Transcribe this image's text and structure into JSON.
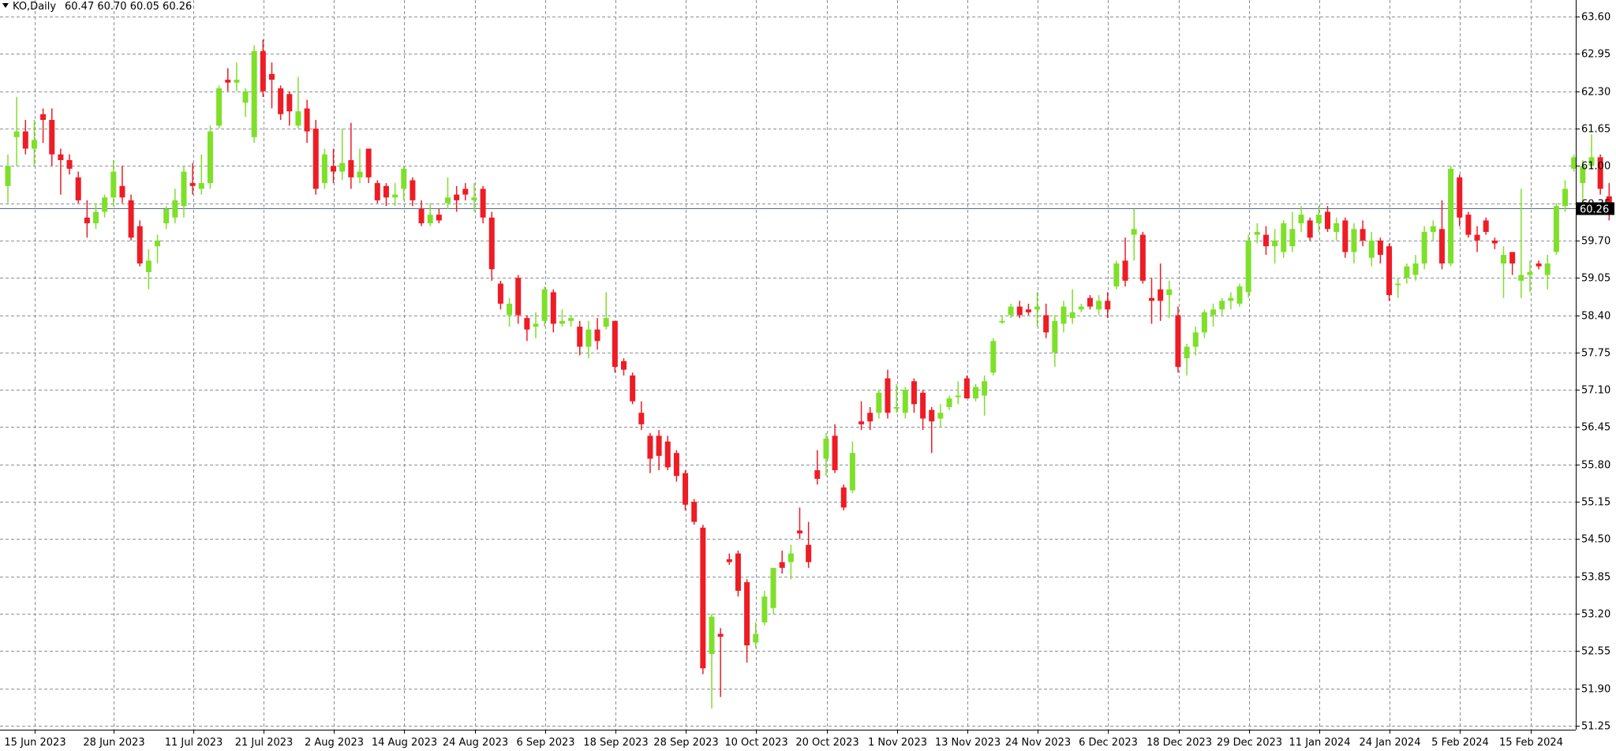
{
  "header": {
    "symbol_label": "KO,Daily",
    "ohlc_text": "60.47 60.70 60.05 60.26"
  },
  "price_marker": {
    "value": 60.26,
    "label": "60.26"
  },
  "colors": {
    "bull": "#7ee02a",
    "bear": "#ee1c25",
    "grid": "#8a9099",
    "price_line": "#5a6a80",
    "price_marker_bg": "#000000",
    "price_marker_fg": "#ffffff"
  },
  "chart_data": {
    "type": "candlestick",
    "title": "",
    "xlabel": "",
    "ylabel": "",
    "grid": true,
    "ylim": [
      51.25,
      63.6
    ],
    "y_ticks": [
      "63.60",
      "62.95",
      "62.30",
      "61.65",
      "61.00",
      "60.35",
      "59.70",
      "59.05",
      "58.40",
      "57.75",
      "57.10",
      "56.45",
      "55.80",
      "55.15",
      "54.50",
      "53.85",
      "53.20",
      "52.55",
      "51.90",
      "51.25"
    ],
    "x_ticks": [
      {
        "label": "15 Jun 2023",
        "index": 0
      },
      {
        "label": "28 Jun 2023",
        "index": 9
      },
      {
        "label": "11 Jul 2023",
        "index": 18
      },
      {
        "label": "21 Jul 2023",
        "index": 26
      },
      {
        "label": "2 Aug 2023",
        "index": 34
      },
      {
        "label": "14 Aug 2023",
        "index": 42
      },
      {
        "label": "24 Aug 2023",
        "index": 50
      },
      {
        "label": "6 Sep 2023",
        "index": 58
      },
      {
        "label": "18 Sep 2023",
        "index": 66
      },
      {
        "label": "28 Sep 2023",
        "index": 74
      },
      {
        "label": "10 Oct 2023",
        "index": 82
      },
      {
        "label": "20 Oct 2023",
        "index": 90
      },
      {
        "label": "1 Nov 2023",
        "index": 98
      },
      {
        "label": "13 Nov 2023",
        "index": 106
      },
      {
        "label": "24 Nov 2023",
        "index": 114
      },
      {
        "label": "6 Dec 2023",
        "index": 122
      },
      {
        "label": "18 Dec 2023",
        "index": 130
      },
      {
        "label": "29 Dec 2023",
        "index": 138
      },
      {
        "label": "11 Jan 2024",
        "index": 146
      },
      {
        "label": "24 Jan 2024",
        "index": 154
      },
      {
        "label": "5 Feb 2024",
        "index": 162
      },
      {
        "label": "15 Feb 2024",
        "index": 170
      }
    ],
    "candles": [
      {
        "o": 60.65,
        "h": 61.2,
        "l": 60.35,
        "c": 61.0
      },
      {
        "o": 61.5,
        "h": 62.2,
        "l": 61.0,
        "c": 61.6
      },
      {
        "o": 61.6,
        "h": 61.8,
        "l": 61.2,
        "c": 61.3
      },
      {
        "o": 61.3,
        "h": 61.8,
        "l": 61.0,
        "c": 61.45
      },
      {
        "o": 61.9,
        "h": 62.0,
        "l": 61.4,
        "c": 61.8
      },
      {
        "o": 61.8,
        "h": 62.0,
        "l": 61.0,
        "c": 61.2
      },
      {
        "o": 61.2,
        "h": 61.3,
        "l": 60.5,
        "c": 61.1
      },
      {
        "o": 61.1,
        "h": 61.2,
        "l": 60.85,
        "c": 60.95
      },
      {
        "o": 60.8,
        "h": 60.9,
        "l": 60.35,
        "c": 60.4
      },
      {
        "o": 60.1,
        "h": 60.4,
        "l": 59.75,
        "c": 60.0
      },
      {
        "o": 60.0,
        "h": 60.35,
        "l": 59.9,
        "c": 60.2
      },
      {
        "o": 60.2,
        "h": 60.5,
        "l": 60.1,
        "c": 60.45
      },
      {
        "o": 60.45,
        "h": 61.1,
        "l": 60.3,
        "c": 60.9
      },
      {
        "o": 60.65,
        "h": 61.0,
        "l": 60.35,
        "c": 60.45
      },
      {
        "o": 60.4,
        "h": 60.5,
        "l": 59.7,
        "c": 59.75
      },
      {
        "o": 59.95,
        "h": 60.05,
        "l": 59.25,
        "c": 59.3
      },
      {
        "o": 59.15,
        "h": 59.55,
        "l": 58.85,
        "c": 59.35
      },
      {
        "o": 59.6,
        "h": 59.8,
        "l": 59.3,
        "c": 59.7
      },
      {
        "o": 60.0,
        "h": 60.3,
        "l": 59.9,
        "c": 60.25
      },
      {
        "o": 60.1,
        "h": 60.6,
        "l": 60.0,
        "c": 60.4
      },
      {
        "o": 60.3,
        "h": 61.0,
        "l": 60.1,
        "c": 60.9
      },
      {
        "o": 60.7,
        "h": 61.05,
        "l": 60.5,
        "c": 60.65
      },
      {
        "o": 60.6,
        "h": 61.2,
        "l": 60.5,
        "c": 60.7
      },
      {
        "o": 60.7,
        "h": 61.7,
        "l": 60.6,
        "c": 61.6
      },
      {
        "o": 61.7,
        "h": 62.4,
        "l": 61.65,
        "c": 62.35
      },
      {
        "o": 62.5,
        "h": 62.7,
        "l": 62.3,
        "c": 62.45
      },
      {
        "o": 62.45,
        "h": 62.8,
        "l": 62.3,
        "c": 62.5
      },
      {
        "o": 62.1,
        "h": 62.35,
        "l": 61.85,
        "c": 62.3
      },
      {
        "o": 61.5,
        "h": 63.1,
        "l": 61.4,
        "c": 63.0
      },
      {
        "o": 63.0,
        "h": 63.2,
        "l": 62.2,
        "c": 62.3
      },
      {
        "o": 62.6,
        "h": 62.8,
        "l": 62.0,
        "c": 62.5
      },
      {
        "o": 62.35,
        "h": 62.4,
        "l": 61.8,
        "c": 61.9
      },
      {
        "o": 62.25,
        "h": 62.3,
        "l": 61.7,
        "c": 61.95
      },
      {
        "o": 61.7,
        "h": 62.55,
        "l": 61.65,
        "c": 61.95
      },
      {
        "o": 62.0,
        "h": 62.15,
        "l": 61.4,
        "c": 61.6
      },
      {
        "o": 61.65,
        "h": 61.8,
        "l": 60.5,
        "c": 60.6
      },
      {
        "o": 60.7,
        "h": 61.3,
        "l": 60.6,
        "c": 61.2
      },
      {
        "o": 61.0,
        "h": 61.3,
        "l": 60.7,
        "c": 60.9
      },
      {
        "o": 60.9,
        "h": 61.65,
        "l": 60.75,
        "c": 61.05
      },
      {
        "o": 61.1,
        "h": 61.75,
        "l": 60.6,
        "c": 60.8
      },
      {
        "o": 60.8,
        "h": 61.3,
        "l": 60.7,
        "c": 60.9
      },
      {
        "o": 61.3,
        "h": 61.3,
        "l": 60.7,
        "c": 60.8
      },
      {
        "o": 60.7,
        "h": 60.75,
        "l": 60.35,
        "c": 60.4
      },
      {
        "o": 60.65,
        "h": 60.7,
        "l": 60.3,
        "c": 60.45
      },
      {
        "o": 60.45,
        "h": 60.7,
        "l": 60.3,
        "c": 60.5
      },
      {
        "o": 60.6,
        "h": 61.0,
        "l": 60.4,
        "c": 60.95
      },
      {
        "o": 60.75,
        "h": 60.8,
        "l": 60.3,
        "c": 60.4
      },
      {
        "o": 60.25,
        "h": 60.4,
        "l": 59.95,
        "c": 60.0
      },
      {
        "o": 60.0,
        "h": 60.35,
        "l": 59.95,
        "c": 60.15
      },
      {
        "o": 60.15,
        "h": 60.25,
        "l": 60.0,
        "c": 60.05
      },
      {
        "o": 60.35,
        "h": 60.8,
        "l": 60.25,
        "c": 60.45
      },
      {
        "o": 60.5,
        "h": 60.65,
        "l": 60.2,
        "c": 60.4
      },
      {
        "o": 60.6,
        "h": 60.7,
        "l": 60.4,
        "c": 60.5
      },
      {
        "o": 60.4,
        "h": 60.7,
        "l": 60.2,
        "c": 60.45
      },
      {
        "o": 60.6,
        "h": 60.65,
        "l": 60.0,
        "c": 60.1
      },
      {
        "o": 60.1,
        "h": 60.2,
        "l": 59.0,
        "c": 59.2
      },
      {
        "o": 58.95,
        "h": 59.0,
        "l": 58.5,
        "c": 58.6
      },
      {
        "o": 58.4,
        "h": 58.7,
        "l": 58.2,
        "c": 58.6
      },
      {
        "o": 59.05,
        "h": 59.1,
        "l": 58.25,
        "c": 58.4
      },
      {
        "o": 58.35,
        "h": 58.4,
        "l": 57.95,
        "c": 58.15
      },
      {
        "o": 58.2,
        "h": 58.45,
        "l": 58.0,
        "c": 58.25
      },
      {
        "o": 58.3,
        "h": 58.9,
        "l": 58.2,
        "c": 58.85
      },
      {
        "o": 58.8,
        "h": 58.85,
        "l": 58.1,
        "c": 58.25
      },
      {
        "o": 58.25,
        "h": 58.5,
        "l": 58.2,
        "c": 58.3
      },
      {
        "o": 58.3,
        "h": 58.4,
        "l": 58.2,
        "c": 58.35
      },
      {
        "o": 58.2,
        "h": 58.3,
        "l": 57.7,
        "c": 57.85
      },
      {
        "o": 57.85,
        "h": 58.3,
        "l": 57.65,
        "c": 58.15
      },
      {
        "o": 58.15,
        "h": 58.35,
        "l": 57.8,
        "c": 57.95
      },
      {
        "o": 58.2,
        "h": 58.8,
        "l": 58.15,
        "c": 58.35
      },
      {
        "o": 58.3,
        "h": 58.3,
        "l": 57.4,
        "c": 57.5
      },
      {
        "o": 57.6,
        "h": 57.65,
        "l": 57.35,
        "c": 57.45
      },
      {
        "o": 57.35,
        "h": 57.4,
        "l": 56.85,
        "c": 56.9
      },
      {
        "o": 56.7,
        "h": 56.9,
        "l": 56.4,
        "c": 56.5
      },
      {
        "o": 56.3,
        "h": 56.35,
        "l": 55.65,
        "c": 55.9
      },
      {
        "o": 56.3,
        "h": 56.4,
        "l": 55.7,
        "c": 55.95
      },
      {
        "o": 56.2,
        "h": 56.3,
        "l": 55.7,
        "c": 55.75
      },
      {
        "o": 56.0,
        "h": 56.05,
        "l": 55.5,
        "c": 55.6
      },
      {
        "o": 55.65,
        "h": 55.7,
        "l": 55.0,
        "c": 55.1
      },
      {
        "o": 55.15,
        "h": 55.2,
        "l": 54.75,
        "c": 54.8
      },
      {
        "o": 54.7,
        "h": 54.75,
        "l": 52.15,
        "c": 52.25
      },
      {
        "o": 52.5,
        "h": 53.2,
        "l": 51.55,
        "c": 53.15
      },
      {
        "o": 52.85,
        "h": 52.95,
        "l": 51.75,
        "c": 52.8
      },
      {
        "o": 54.15,
        "h": 54.25,
        "l": 54.05,
        "c": 54.1
      },
      {
        "o": 54.25,
        "h": 54.3,
        "l": 53.5,
        "c": 53.6
      },
      {
        "o": 53.75,
        "h": 53.8,
        "l": 52.35,
        "c": 52.65
      },
      {
        "o": 52.7,
        "h": 53.05,
        "l": 52.6,
        "c": 52.85
      },
      {
        "o": 53.05,
        "h": 53.6,
        "l": 53.0,
        "c": 53.5
      },
      {
        "o": 53.3,
        "h": 54.0,
        "l": 53.2,
        "c": 54.0
      },
      {
        "o": 54.1,
        "h": 54.3,
        "l": 53.9,
        "c": 54.0
      },
      {
        "o": 54.1,
        "h": 54.4,
        "l": 53.8,
        "c": 54.25
      },
      {
        "o": 54.65,
        "h": 55.05,
        "l": 54.5,
        "c": 54.6
      },
      {
        "o": 54.4,
        "h": 54.8,
        "l": 54.0,
        "c": 54.1
      },
      {
        "o": 55.7,
        "h": 56.05,
        "l": 55.45,
        "c": 55.55
      },
      {
        "o": 55.9,
        "h": 56.35,
        "l": 55.6,
        "c": 56.25
      },
      {
        "o": 56.3,
        "h": 56.5,
        "l": 55.65,
        "c": 55.7
      },
      {
        "o": 55.4,
        "h": 55.45,
        "l": 55.0,
        "c": 55.05
      },
      {
        "o": 55.35,
        "h": 56.2,
        "l": 55.3,
        "c": 56.0
      },
      {
        "o": 56.55,
        "h": 56.9,
        "l": 56.4,
        "c": 56.5
      },
      {
        "o": 56.7,
        "h": 56.8,
        "l": 56.4,
        "c": 56.55
      },
      {
        "o": 56.7,
        "h": 57.1,
        "l": 56.6,
        "c": 57.05
      },
      {
        "o": 57.3,
        "h": 57.45,
        "l": 56.6,
        "c": 56.7
      },
      {
        "o": 56.8,
        "h": 57.2,
        "l": 56.7,
        "c": 56.8
      },
      {
        "o": 56.7,
        "h": 57.15,
        "l": 56.6,
        "c": 57.1
      },
      {
        "o": 57.25,
        "h": 57.3,
        "l": 56.7,
        "c": 56.85
      },
      {
        "o": 57.05,
        "h": 57.1,
        "l": 56.4,
        "c": 56.6
      },
      {
        "o": 56.75,
        "h": 56.8,
        "l": 56.0,
        "c": 56.55
      },
      {
        "o": 56.6,
        "h": 56.85,
        "l": 56.45,
        "c": 56.7
      },
      {
        "o": 56.8,
        "h": 57.0,
        "l": 56.75,
        "c": 56.95
      },
      {
        "o": 57.0,
        "h": 57.25,
        "l": 56.85,
        "c": 57.0
      },
      {
        "o": 57.3,
        "h": 57.35,
        "l": 56.95,
        "c": 56.95
      },
      {
        "o": 56.95,
        "h": 57.2,
        "l": 56.9,
        "c": 57.15
      },
      {
        "o": 57.0,
        "h": 57.35,
        "l": 56.65,
        "c": 57.25
      },
      {
        "o": 57.4,
        "h": 58.0,
        "l": 57.35,
        "c": 57.95
      },
      {
        "o": 58.3,
        "h": 58.4,
        "l": 58.25,
        "c": 58.3
      },
      {
        "o": 58.4,
        "h": 58.6,
        "l": 58.35,
        "c": 58.55
      },
      {
        "o": 58.55,
        "h": 58.65,
        "l": 58.35,
        "c": 58.4
      },
      {
        "o": 58.5,
        "h": 58.6,
        "l": 58.4,
        "c": 58.45
      },
      {
        "o": 58.5,
        "h": 58.8,
        "l": 58.2,
        "c": 58.55
      },
      {
        "o": 58.4,
        "h": 58.6,
        "l": 58.0,
        "c": 58.1
      },
      {
        "o": 57.75,
        "h": 58.4,
        "l": 57.5,
        "c": 58.3
      },
      {
        "o": 58.25,
        "h": 58.65,
        "l": 58.1,
        "c": 58.55
      },
      {
        "o": 58.35,
        "h": 58.85,
        "l": 58.25,
        "c": 58.45
      },
      {
        "o": 58.5,
        "h": 58.6,
        "l": 58.45,
        "c": 58.55
      },
      {
        "o": 58.7,
        "h": 58.75,
        "l": 58.5,
        "c": 58.55
      },
      {
        "o": 58.5,
        "h": 58.75,
        "l": 58.4,
        "c": 58.65
      },
      {
        "o": 58.65,
        "h": 58.8,
        "l": 58.35,
        "c": 58.5
      },
      {
        "o": 58.9,
        "h": 59.35,
        "l": 58.85,
        "c": 59.3
      },
      {
        "o": 59.35,
        "h": 59.75,
        "l": 58.9,
        "c": 59.0
      },
      {
        "o": 59.8,
        "h": 60.25,
        "l": 59.35,
        "c": 59.9
      },
      {
        "o": 59.8,
        "h": 59.85,
        "l": 58.95,
        "c": 59.0
      },
      {
        "o": 58.7,
        "h": 59.05,
        "l": 58.25,
        "c": 58.65
      },
      {
        "o": 58.85,
        "h": 59.3,
        "l": 58.3,
        "c": 58.65
      },
      {
        "o": 58.75,
        "h": 59.0,
        "l": 58.35,
        "c": 58.85
      },
      {
        "o": 58.4,
        "h": 58.55,
        "l": 57.4,
        "c": 57.5
      },
      {
        "o": 57.65,
        "h": 57.9,
        "l": 57.35,
        "c": 57.85
      },
      {
        "o": 57.85,
        "h": 58.2,
        "l": 57.7,
        "c": 58.1
      },
      {
        "o": 58.1,
        "h": 58.5,
        "l": 58.0,
        "c": 58.45
      },
      {
        "o": 58.4,
        "h": 58.6,
        "l": 58.2,
        "c": 58.5
      },
      {
        "o": 58.5,
        "h": 58.7,
        "l": 58.4,
        "c": 58.65
      },
      {
        "o": 58.65,
        "h": 58.8,
        "l": 58.5,
        "c": 58.7
      },
      {
        "o": 58.6,
        "h": 58.95,
        "l": 58.55,
        "c": 58.9
      },
      {
        "o": 58.8,
        "h": 59.8,
        "l": 58.7,
        "c": 59.7
      },
      {
        "o": 59.8,
        "h": 60.0,
        "l": 59.65,
        "c": 59.85
      },
      {
        "o": 59.8,
        "h": 59.95,
        "l": 59.45,
        "c": 59.6
      },
      {
        "o": 59.6,
        "h": 59.9,
        "l": 59.3,
        "c": 59.7
      },
      {
        "o": 59.5,
        "h": 60.05,
        "l": 59.4,
        "c": 60.0
      },
      {
        "o": 59.6,
        "h": 60.2,
        "l": 59.5,
        "c": 59.9
      },
      {
        "o": 60.0,
        "h": 60.3,
        "l": 59.85,
        "c": 60.15
      },
      {
        "o": 60.05,
        "h": 60.1,
        "l": 59.7,
        "c": 59.75
      },
      {
        "o": 60.0,
        "h": 60.3,
        "l": 59.85,
        "c": 60.15
      },
      {
        "o": 60.2,
        "h": 60.3,
        "l": 59.85,
        "c": 59.9
      },
      {
        "o": 59.85,
        "h": 60.1,
        "l": 59.7,
        "c": 60.0
      },
      {
        "o": 60.05,
        "h": 60.1,
        "l": 59.4,
        "c": 59.5
      },
      {
        "o": 59.5,
        "h": 60.0,
        "l": 59.3,
        "c": 59.9
      },
      {
        "o": 59.9,
        "h": 60.05,
        "l": 59.6,
        "c": 59.7
      },
      {
        "o": 59.4,
        "h": 59.85,
        "l": 59.25,
        "c": 59.7
      },
      {
        "o": 59.7,
        "h": 59.75,
        "l": 59.3,
        "c": 59.45
      },
      {
        "o": 59.6,
        "h": 59.65,
        "l": 58.65,
        "c": 58.75
      },
      {
        "o": 58.95,
        "h": 59.05,
        "l": 58.7,
        "c": 58.95
      },
      {
        "o": 59.05,
        "h": 59.3,
        "l": 58.95,
        "c": 59.25
      },
      {
        "o": 59.1,
        "h": 59.45,
        "l": 59.0,
        "c": 59.3
      },
      {
        "o": 59.3,
        "h": 59.95,
        "l": 59.2,
        "c": 59.85
      },
      {
        "o": 59.85,
        "h": 60.05,
        "l": 59.7,
        "c": 59.95
      },
      {
        "o": 59.9,
        "h": 60.4,
        "l": 59.2,
        "c": 59.3
      },
      {
        "o": 59.3,
        "h": 61.0,
        "l": 59.25,
        "c": 60.95
      },
      {
        "o": 60.8,
        "h": 60.85,
        "l": 59.95,
        "c": 60.1
      },
      {
        "o": 60.15,
        "h": 60.2,
        "l": 59.75,
        "c": 59.8
      },
      {
        "o": 59.8,
        "h": 59.95,
        "l": 59.5,
        "c": 59.7
      },
      {
        "o": 60.05,
        "h": 60.1,
        "l": 59.8,
        "c": 59.85
      },
      {
        "o": 59.7,
        "h": 59.75,
        "l": 59.55,
        "c": 59.65
      },
      {
        "o": 59.3,
        "h": 59.6,
        "l": 58.7,
        "c": 59.45
      },
      {
        "o": 59.5,
        "h": 59.5,
        "l": 59.1,
        "c": 59.3
      },
      {
        "o": 59.0,
        "h": 60.6,
        "l": 58.7,
        "c": 59.1
      },
      {
        "o": 59.1,
        "h": 59.35,
        "l": 58.8,
        "c": 59.15
      },
      {
        "o": 59.3,
        "h": 59.35,
        "l": 59.2,
        "c": 59.25
      },
      {
        "o": 59.1,
        "h": 59.45,
        "l": 58.85,
        "c": 59.3
      },
      {
        "o": 59.5,
        "h": 60.35,
        "l": 59.45,
        "c": 60.3
      },
      {
        "o": 60.3,
        "h": 60.75,
        "l": 60.2,
        "c": 60.6
      },
      {
        "o": 60.95,
        "h": 61.2,
        "l": 60.9,
        "c": 61.15
      },
      {
        "o": 60.7,
        "h": 61.1,
        "l": 60.35,
        "c": 61.0
      },
      {
        "o": 61.0,
        "h": 61.55,
        "l": 60.95,
        "c": 61.15
      },
      {
        "o": 61.15,
        "h": 61.2,
        "l": 60.5,
        "c": 60.6
      },
      {
        "o": 60.47,
        "h": 60.7,
        "l": 60.05,
        "c": 60.26
      }
    ]
  }
}
